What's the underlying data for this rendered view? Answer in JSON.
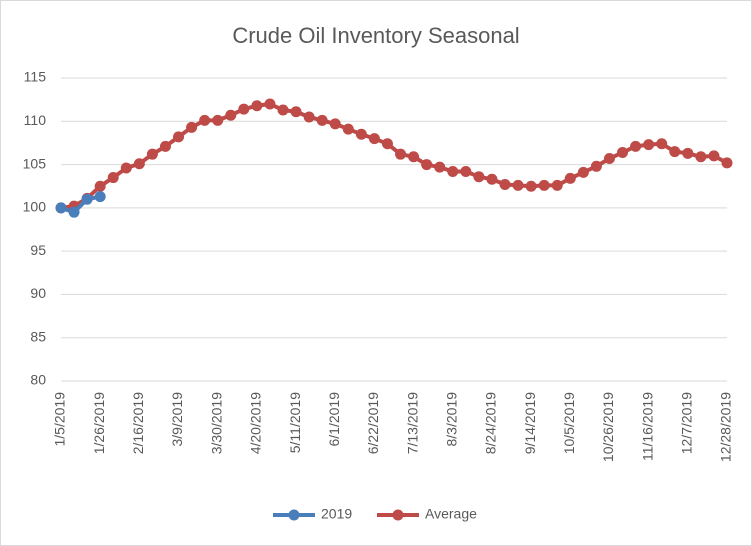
{
  "chart_data": {
    "type": "line",
    "title": "Crude Oil Inventory Seasonal",
    "categories": [
      "1/5/2019",
      null,
      null,
      "1/26/2019",
      null,
      null,
      "2/16/2019",
      null,
      null,
      "3/9/2019",
      null,
      null,
      "3/30/2019",
      null,
      null,
      "4/20/2019",
      null,
      null,
      "5/11/2019",
      null,
      null,
      "6/1/2019",
      null,
      null,
      "6/22/2019",
      null,
      null,
      "7/13/2019",
      null,
      null,
      "8/3/2019",
      null,
      null,
      "8/24/2019",
      null,
      null,
      "9/14/2019",
      null,
      null,
      "10/5/2019",
      null,
      null,
      "10/26/2019",
      null,
      null,
      "11/16/2019",
      null,
      null,
      "12/7/2019",
      null,
      null,
      "12/28/2019"
    ],
    "series": [
      {
        "name": "2019",
        "color": "#4a7ebb",
        "values": [
          100,
          99.5,
          101.0,
          101.3,
          null,
          null,
          null,
          null,
          null,
          null,
          null,
          null,
          null,
          null,
          null,
          null,
          null,
          null,
          null,
          null,
          null,
          null,
          null,
          null,
          null,
          null,
          null,
          null,
          null,
          null,
          null,
          null,
          null,
          null,
          null,
          null,
          null,
          null,
          null,
          null,
          null,
          null,
          null,
          null,
          null,
          null,
          null,
          null,
          null,
          null,
          null,
          null
        ]
      },
      {
        "name": "Average",
        "color": "#be4b48",
        "values": [
          100,
          100.2,
          101.1,
          102.5,
          103.5,
          104.6,
          105.1,
          106.2,
          107.1,
          108.2,
          109.3,
          110.1,
          110.1,
          110.7,
          111.4,
          111.8,
          112.0,
          111.3,
          111.1,
          110.5,
          110.1,
          109.7,
          109.1,
          108.5,
          108.0,
          107.4,
          106.2,
          105.9,
          105.0,
          104.7,
          104.2,
          104.2,
          103.6,
          103.3,
          102.7,
          102.6,
          102.5,
          102.6,
          102.6,
          103.4,
          104.1,
          104.8,
          105.7,
          106.4,
          107.1,
          107.3,
          107.4,
          106.5,
          106.3,
          105.9,
          106.0,
          105.2
        ]
      }
    ],
    "ylim": [
      80,
      115
    ],
    "yticks": [
      80,
      85,
      90,
      95,
      100,
      105,
      110,
      115
    ],
    "grid": true,
    "legend": "bottom"
  }
}
